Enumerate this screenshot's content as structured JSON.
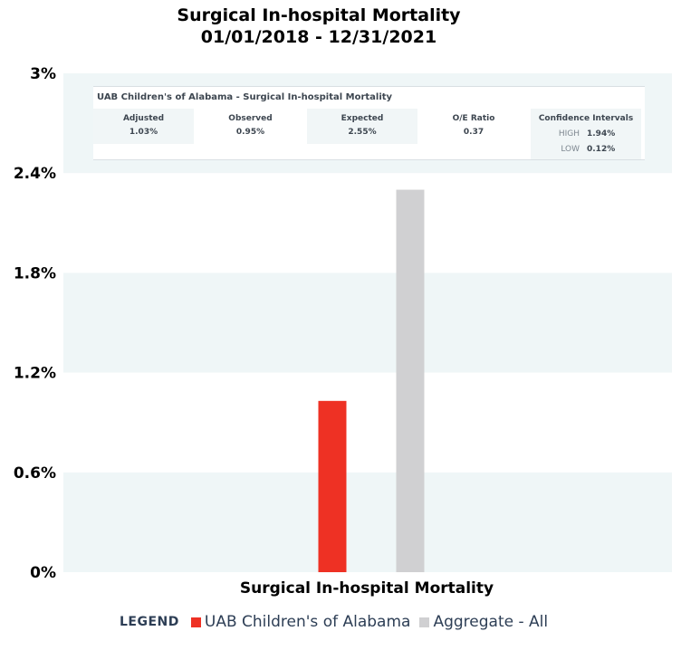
{
  "chart_data": {
    "type": "bar",
    "title_lines": [
      "Surgical In-hospital Mortality",
      "01/01/2018 - 12/31/2021"
    ],
    "categories": [
      "Surgical In-hospital Mortality"
    ],
    "series": [
      {
        "name": "UAB Children's of Alabama",
        "values": [
          1.03
        ],
        "color": "#ee3124"
      },
      {
        "name": "Aggregate - All",
        "values": [
          2.3
        ],
        "color": "#d0d0d2"
      }
    ],
    "ylim": [
      0,
      3
    ],
    "yticks": [
      "0%",
      "0.6%",
      "1.2%",
      "1.8%",
      "2.4%",
      "3%"
    ],
    "ytick_values": [
      0,
      0.6,
      1.2,
      1.8,
      2.4,
      3
    ],
    "grid": "alternating bands",
    "band_color": "#eff6f7",
    "legend_position": "bottom",
    "legend_title": "LEGEND"
  },
  "info_table": {
    "title": "UAB Children's of Alabama - Surgical In-hospital Mortality",
    "columns": [
      {
        "header": "Adjusted",
        "value": "1.03%"
      },
      {
        "header": "Observed",
        "value": "0.95%"
      },
      {
        "header": "Expected",
        "value": "2.55%"
      },
      {
        "header": "O/E Ratio",
        "value": "0.37"
      }
    ],
    "ci": {
      "header": "Confidence Intervals",
      "high_label": "HIGH",
      "high_value": "1.94%",
      "low_label": "LOW",
      "low_value": "0.12%"
    }
  }
}
